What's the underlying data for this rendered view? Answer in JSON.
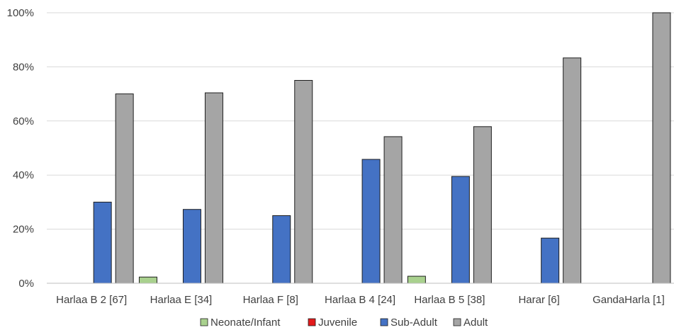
{
  "chart_data": {
    "type": "bar",
    "categories": [
      "Harlaa B 2 [67]",
      "Harlaa E [34]",
      "Harlaa F [8]",
      "Harlaa B 4 [24]",
      "Harlaa B 5 [38]",
      "Harar [6]",
      "GandaHarla [1]"
    ],
    "series": [
      {
        "name": "Neonate/Infant",
        "color": "#a9d18e",
        "values": [
          0,
          2.3,
          0,
          0,
          2.6,
          0,
          0
        ]
      },
      {
        "name": "Juvenile",
        "color": "#e31a1c",
        "values": [
          0,
          0,
          0,
          0,
          0,
          0,
          0
        ]
      },
      {
        "name": "Sub-Adult",
        "color": "#4472c4",
        "values": [
          30,
          27.3,
          25,
          45.8,
          39.5,
          16.7,
          0
        ]
      },
      {
        "name": "Adult",
        "color": "#a5a5a5",
        "values": [
          70,
          70.4,
          75,
          54.2,
          57.9,
          83.3,
          100
        ]
      }
    ],
    "y_ticks": [
      "0%",
      "20%",
      "40%",
      "60%",
      "80%",
      "100%"
    ],
    "ylim": [
      0,
      100
    ],
    "grid": true,
    "legend_position": "bottom"
  }
}
